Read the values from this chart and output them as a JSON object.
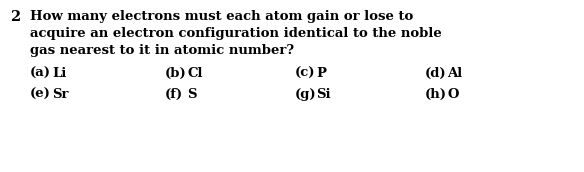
{
  "background_color": "#ffffff",
  "question_number": "2",
  "question_text_lines": [
    "How many electrons must each atom gain or lose to",
    "acquire an electron configuration identical to the noble",
    "gas nearest to it in atomic number?"
  ],
  "sub_items_row1": [
    {
      "label": "(a)",
      "element": "Li"
    },
    {
      "label": "(b)",
      "element": "Cl"
    },
    {
      "label": "(c)",
      "element": "P"
    },
    {
      "label": "(d)",
      "element": "Al"
    }
  ],
  "sub_items_row2": [
    {
      "label": "(e)",
      "element": "Sr"
    },
    {
      "label": "(f)",
      "element": "S"
    },
    {
      "label": "(g)",
      "element": "Si"
    },
    {
      "label": "(h)",
      "element": "O"
    }
  ],
  "font_size_q": 9.5,
  "font_size_num": 10.5,
  "font_size_sub": 9.5,
  "text_color": "#000000",
  "fig_width": 5.84,
  "fig_height": 1.72,
  "dpi": 100
}
